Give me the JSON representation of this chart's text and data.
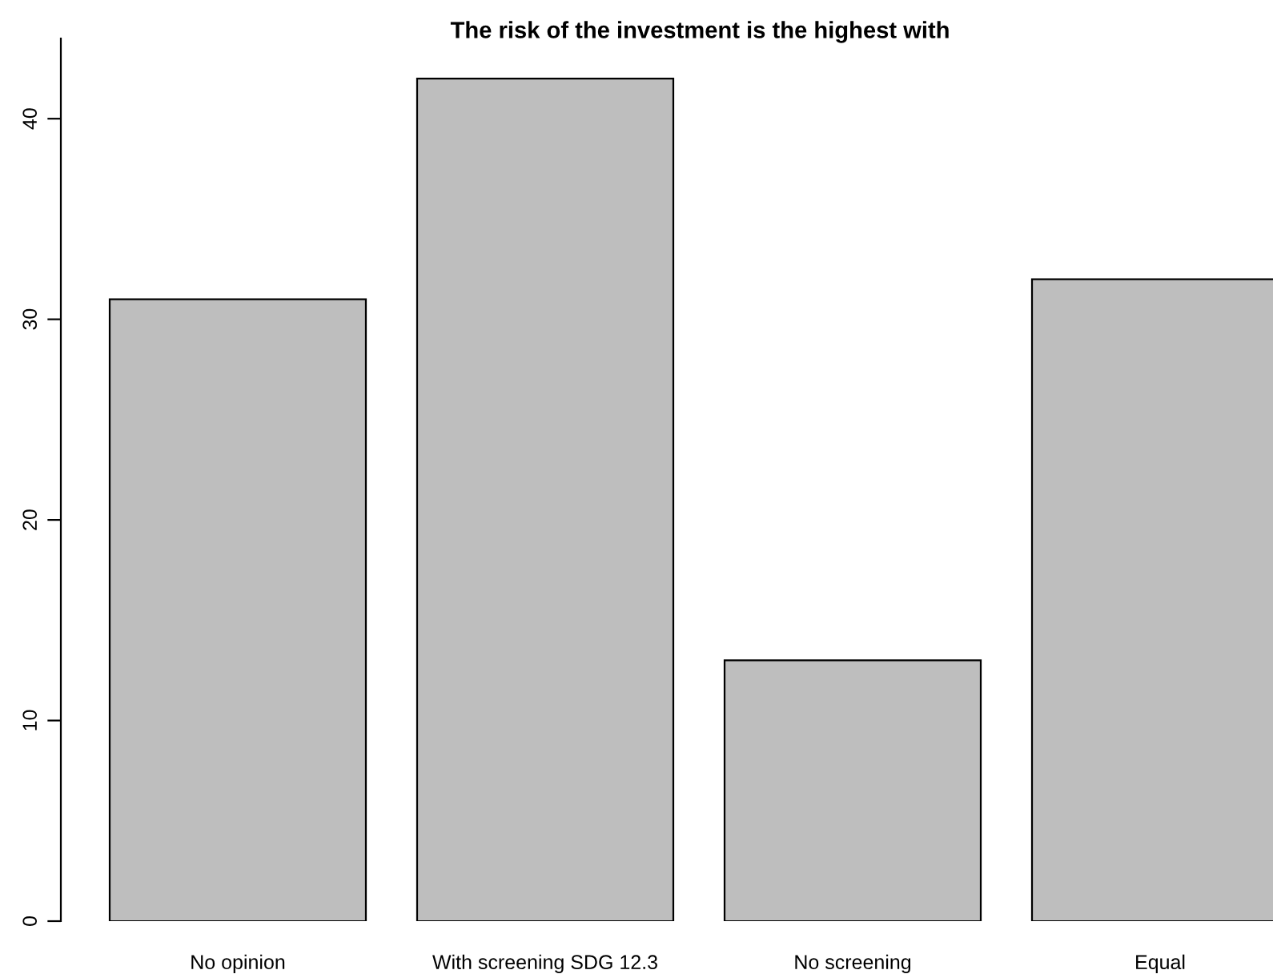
{
  "chart_data": {
    "type": "bar",
    "title": "The risk of the investment is the highest with",
    "categories": [
      "No opinion",
      "With screening SDG 12.3",
      "No screening",
      "Equal"
    ],
    "values": [
      31,
      42,
      13,
      32
    ],
    "color": "#bebebe",
    "ylim": [
      0,
      44
    ],
    "yticks": [
      0,
      10,
      20,
      30,
      40
    ],
    "grid": false
  }
}
